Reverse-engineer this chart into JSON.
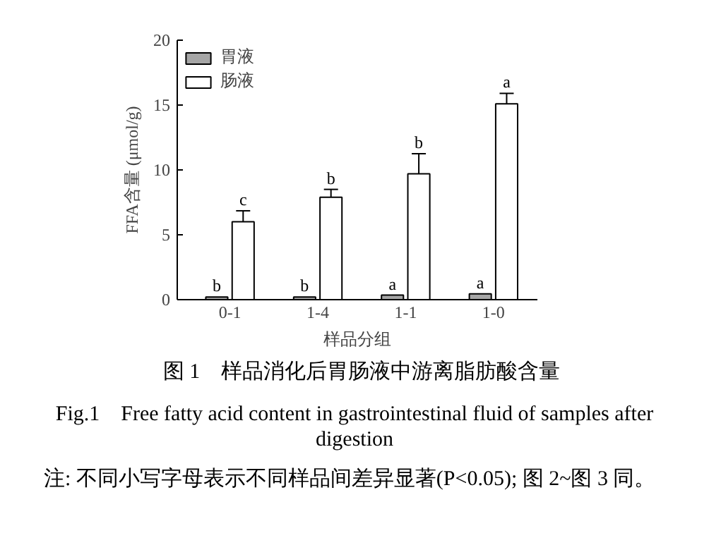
{
  "chart_data": {
    "type": "bar",
    "title": "图 1　样品消化后胃肠液中游离脂肪酸含量",
    "subtitle": "Fig.1　Free fatty acid content in gastrointestinal fluid of samples after digestion",
    "xlabel": "样品分组",
    "ylabel": "FFA含量 (μmol/g)",
    "categories": [
      "0-1",
      "1-4",
      "1-1",
      "1-0"
    ],
    "series": [
      {
        "name": "胃液",
        "color": "#a6a6a6",
        "values": [
          0.2,
          0.2,
          0.35,
          0.45
        ],
        "value_labels": [
          "b",
          "b",
          "a",
          "a"
        ]
      },
      {
        "name": "肠液",
        "color": "#ffffff",
        "values": [
          6.0,
          7.9,
          9.7,
          15.1
        ],
        "errors": [
          0.85,
          0.6,
          1.55,
          0.8
        ],
        "value_labels": [
          "c",
          "b",
          "b",
          "a"
        ]
      }
    ],
    "ylim": [
      0,
      20
    ],
    "yticks": [
      0,
      5,
      10,
      15,
      20
    ],
    "grid": false,
    "legend": "top left",
    "annotations": [
      "注: 不同小写字母表示不同样品间差异显著(P<0.05); 图 2~图 3 同。"
    ]
  }
}
